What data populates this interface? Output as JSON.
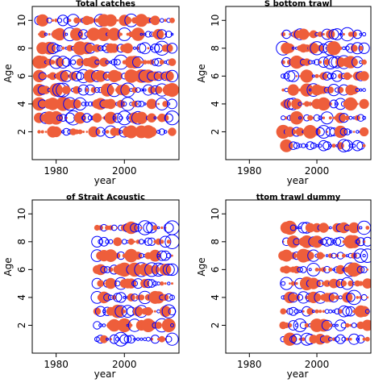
{
  "chart_data": [
    {
      "type": "scatter",
      "title": "Total catches",
      "xlabel": "year",
      "ylabel": "Age",
      "xlim": [
        1973,
        2016
      ],
      "ylim": [
        0,
        11
      ],
      "xticks": [
        1980,
        2000
      ],
      "yticks": [
        2,
        4,
        6,
        8,
        10
      ],
      "encoding": "bubble size = residual magnitude; red filled = positive, blue open = negative",
      "years": [
        1975,
        2014
      ],
      "ages": [
        2,
        3,
        4,
        5,
        6,
        7,
        8,
        9,
        10
      ],
      "grid": false
    },
    {
      "type": "scatter",
      "title": "S bottom trawl",
      "xlabel": "year",
      "ylabel": "Age",
      "xlim": [
        1973,
        2016
      ],
      "ylim": [
        0,
        11
      ],
      "xticks": [
        1980,
        2000
      ],
      "yticks": [
        2,
        4,
        6,
        8,
        10
      ],
      "encoding": "bubble size = residual magnitude; red filled = positive, blue open = negative",
      "years": [
        1990,
        2014
      ],
      "ages": [
        1,
        2,
        3,
        4,
        5,
        6,
        7,
        8,
        9
      ],
      "grid": false
    },
    {
      "type": "scatter",
      "title": "of Strait Acoustic",
      "xlabel": "year",
      "ylabel": "Age",
      "xlim": [
        1973,
        2016
      ],
      "ylim": [
        0,
        11
      ],
      "xticks": [
        1980,
        2000
      ],
      "yticks": [
        2,
        4,
        6,
        8,
        10
      ],
      "encoding": "bubble size = residual magnitude; red filled = positive, blue open = negative",
      "years": [
        1992,
        2014
      ],
      "ages": [
        1,
        2,
        3,
        4,
        5,
        6,
        7,
        8,
        9
      ],
      "grid": false
    },
    {
      "type": "scatter",
      "title": "ttom trawl dummy",
      "xlabel": "year",
      "ylabel": "Age",
      "xlim": [
        1973,
        2016
      ],
      "ylim": [
        0,
        11
      ],
      "xticks": [
        1980,
        2000
      ],
      "yticks": [
        2,
        4,
        6,
        8,
        10
      ],
      "encoding": "bubble size = residual magnitude; red filled = positive, blue open = negative",
      "years": [
        1990,
        2015
      ],
      "ages": [
        1,
        2,
        3,
        4,
        5,
        6,
        7,
        8,
        9
      ],
      "grid": false
    }
  ],
  "colors": {
    "positive": "#EE5E3B",
    "negative": "#0000FF",
    "axis": "#000000"
  }
}
